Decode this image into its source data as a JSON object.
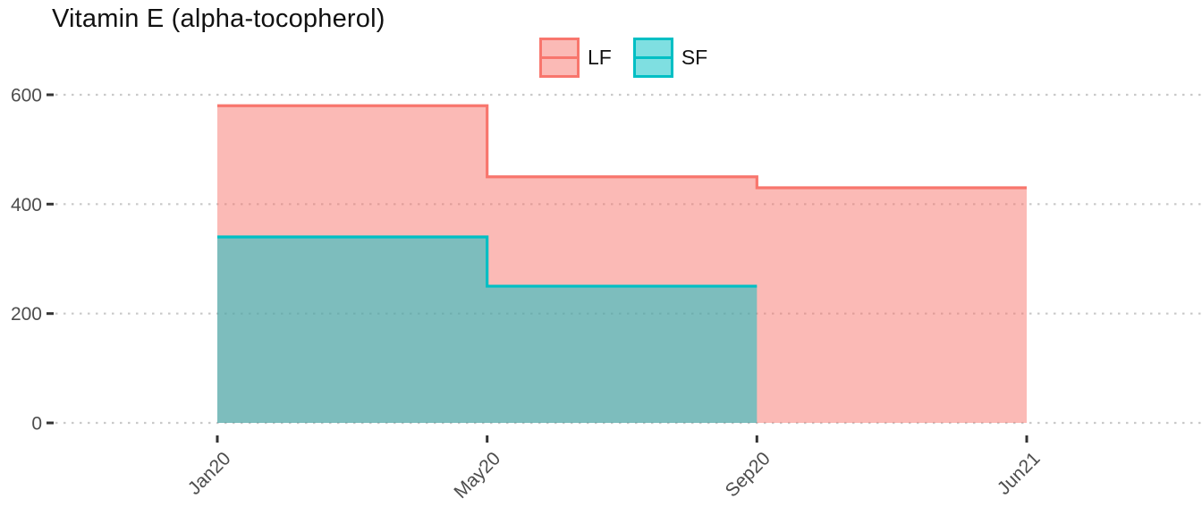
{
  "chart_data": {
    "type": "area",
    "step": true,
    "title": "Vitamin E (alpha-tocopherol)",
    "xlabel": "",
    "ylabel": "",
    "x_categories": [
      "Jan20",
      "May20",
      "Sep20",
      "Jun21"
    ],
    "y_ticks": [
      0,
      200,
      400,
      600
    ],
    "ylim": [
      0,
      600
    ],
    "grid": "horizontal-dotted",
    "legend_position": "top-center",
    "series": [
      {
        "name": "LF",
        "color": "#F8766D",
        "fill_opacity": 0.5,
        "x": [
          "Jan20",
          "May20",
          "Sep20",
          "Jun21"
        ],
        "values": [
          580,
          450,
          430,
          430
        ]
      },
      {
        "name": "SF",
        "color": "#00BFC4",
        "fill_opacity": 0.5,
        "x": [
          "Jan20",
          "May20",
          "Sep20"
        ],
        "values": [
          340,
          250,
          250
        ]
      }
    ],
    "style": {
      "grid_color": "#C9C9C9",
      "tick_color": "#333333",
      "axis_text_color": "#4D4D4D"
    }
  }
}
